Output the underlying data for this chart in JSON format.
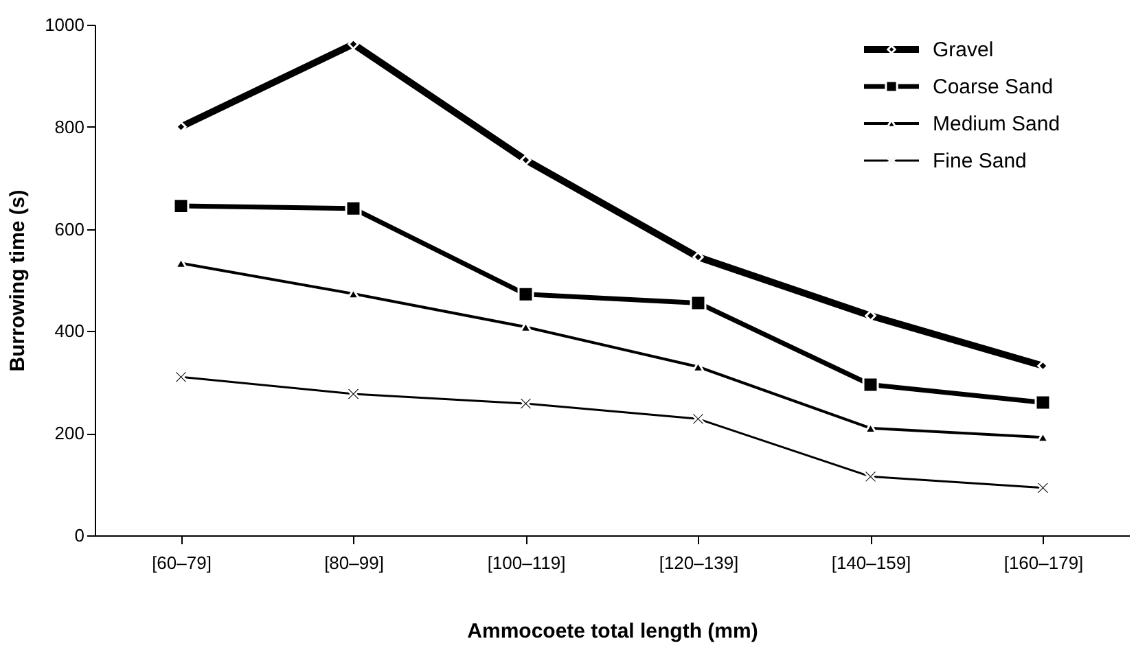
{
  "chart_data": {
    "type": "line",
    "xlabel": "Ammocoete total length (mm)",
    "ylabel": "Burrowing time (s)",
    "categories": [
      "[60–79]",
      "[80–99]",
      "[100–119]",
      "[120–139]",
      "[140–159]",
      "[160–179]"
    ],
    "ylim": [
      0,
      1000
    ],
    "yticks": [
      0,
      200,
      400,
      600,
      800,
      1000
    ],
    "grid": false,
    "legend": "top right",
    "line_style": "solid",
    "series": [
      {
        "name": "Gravel",
        "color": "#000000",
        "marker": "diamond",
        "values": [
          800,
          962,
          735,
          545,
          430,
          332
        ]
      },
      {
        "name": "Coarse Sand",
        "color": "#000000",
        "marker": "square",
        "values": [
          645,
          640,
          472,
          455,
          295,
          260
        ]
      },
      {
        "name": "Medium Sand",
        "color": "#000000",
        "marker": "triangle",
        "values": [
          533,
          473,
          408,
          330,
          210,
          192
        ]
      },
      {
        "name": "Fine Sand",
        "color": "#000000",
        "marker": "cross",
        "values": [
          310,
          277,
          258,
          228,
          115,
          93
        ]
      }
    ]
  }
}
